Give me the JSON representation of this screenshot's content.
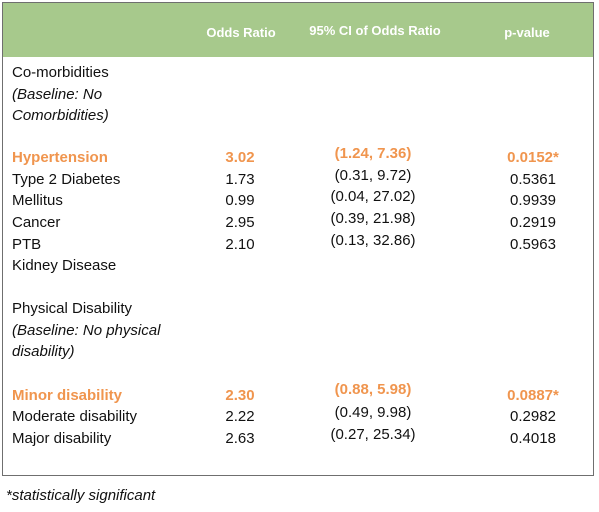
{
  "headers": {
    "odds_ratio": "Odds Ratio",
    "ci": "95% CI of Odds Ratio",
    "p_value": "p-value"
  },
  "section1": {
    "title": "Co-morbidities",
    "baseline_line1": "(Baseline: No",
    "baseline_line2": "Comorbidities)"
  },
  "rows1": [
    {
      "label": "Hypertension",
      "or": "3.02",
      "ci": "(1.24, 7.36)",
      "p": "0.0152*"
    },
    {
      "label": "Type 2 Diabetes",
      "or": "1.73",
      "ci": "(0.31, 9.72)",
      "p": "0.5361"
    },
    {
      "label": "Mellitus",
      "or": "0.99",
      "ci": "(0.04, 27.02)",
      "p": "0.9939"
    },
    {
      "label": "Cancer",
      "or": "2.95",
      "ci": "(0.39, 21.98)",
      "p": "0.2919"
    },
    {
      "label": "PTB",
      "or": "2.10",
      "ci": "(0.13, 32.86)",
      "p": "0.5963"
    },
    {
      "label": "Kidney Disease",
      "or": "",
      "ci": "",
      "p": ""
    }
  ],
  "section2": {
    "title": "Physical Disability",
    "baseline_line1": "(Baseline: No physical",
    "baseline_line2": "disability)"
  },
  "rows2": [
    {
      "label": "Minor disability",
      "or": "2.30",
      "ci": "(0.88, 5.98)",
      "p": "0.0887*"
    },
    {
      "label": "Moderate disability",
      "or": "2.22",
      "ci": "(0.49, 9.98)",
      "p": "0.2982"
    },
    {
      "label": "Major disability",
      "or": "2.63",
      "ci": "(0.27, 25.34)",
      "p": "0.4018"
    }
  ],
  "footnote": "*statistically significant",
  "colors": {
    "header_bg": "#a7c98c",
    "header_text": "#ffffff",
    "highlight": "#f0954e"
  }
}
